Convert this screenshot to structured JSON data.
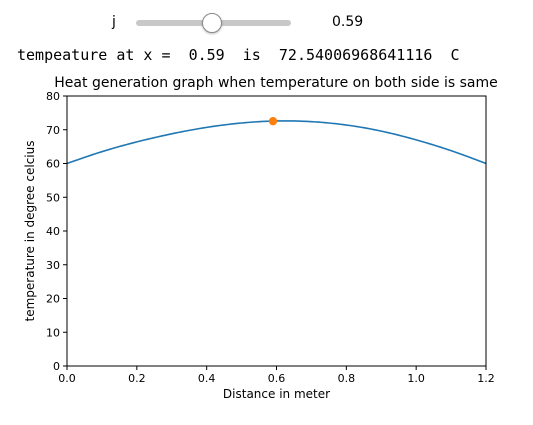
{
  "slider": {
    "label": "j",
    "value": 0.59,
    "value_text": "0.59",
    "min": 0.0,
    "max": 1.2
  },
  "readout": {
    "prefix": "tempeature at x = ",
    "x_text": " 0.59",
    "mid": "  is  ",
    "temp_text": "72.54006968641116",
    "suffix": "  C"
  },
  "chart_data": {
    "type": "line",
    "title": "Heat generation graph when temperature on both side is same",
    "xlabel": "Distance in meter",
    "ylabel": "temperature in degree celcius",
    "xlim": [
      0.0,
      1.2
    ],
    "ylim": [
      0,
      80
    ],
    "xticks": [
      "0.0",
      "0.2",
      "0.4",
      "0.6",
      "0.8",
      "1.0",
      "1.2"
    ],
    "yticks": [
      "0",
      "10",
      "20",
      "30",
      "40",
      "50",
      "60",
      "70",
      "80"
    ],
    "grid": false,
    "series": [
      {
        "color": "#1f77b4",
        "x": [
          0.0,
          0.1,
          0.2,
          0.3,
          0.4,
          0.5,
          0.6,
          0.7,
          0.8,
          0.9,
          1.0,
          1.1,
          1.2
        ],
        "y": [
          60.0,
          63.5,
          66.4,
          68.8,
          70.7,
          72.0,
          72.6,
          72.4,
          71.4,
          69.6,
          67.0,
          63.8,
          60.0
        ]
      }
    ],
    "points": [
      {
        "x": 0.59,
        "y": 72.54,
        "color": "#ff7f0e"
      }
    ]
  }
}
